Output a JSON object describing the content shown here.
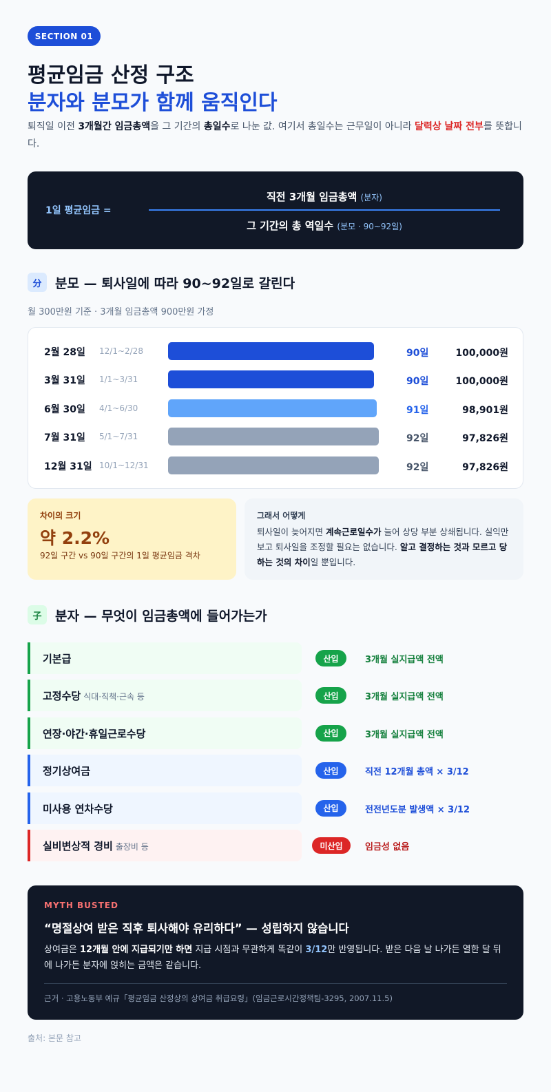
{
  "section_label": "SECTION 01",
  "title_line1": "평균임금 산정 구조",
  "title_line2": "분자와 분모가 함께 움직인다",
  "intro": {
    "p1": "퇴직일 이전 ",
    "b1": "3개월간 임금총액",
    "p2": "을 그 기간의 ",
    "b2": "총일수",
    "p3": "로 나눈 값. 여기서 총일수는 근무일이 아니라 ",
    "r1": "달력상 날짜 전부",
    "p4": "를 뜻합니다."
  },
  "formula": {
    "lhs": "1일 평균임금 =",
    "numerator_prefix": "직전 ",
    "numerator_main": "3개월 임금총액",
    "numerator_note": "(분자)",
    "denominator_main": "그 기간의 총 역일수",
    "denominator_note": "(분모 · 90~92일)"
  },
  "denominator_section": {
    "icon_char": "分",
    "heading": "분모 — 퇴사일에 따라 90~92일로 갈린다",
    "note": "월 300만원 기준 · 3개월 임금총액 900만원 가정",
    "rows": [
      {
        "date": "2월 28일",
        "range": "12/1~2/28",
        "days_value": 90,
        "days": "90일",
        "amount": "100,000원",
        "color": "#1d4ed8",
        "days_color": "#1d4ed8"
      },
      {
        "date": "3월 31일",
        "range": "1/1~3/31",
        "days_value": 90,
        "days": "90일",
        "amount": "100,000원",
        "color": "#1d4ed8",
        "days_color": "#1d4ed8"
      },
      {
        "date": "6월 30일",
        "range": "4/1~6/30",
        "days_value": 91,
        "days": "91일",
        "amount": "98,901원",
        "color": "#60a5fa",
        "days_color": "#2563eb"
      },
      {
        "date": "7월 31일",
        "range": "5/1~7/31",
        "days_value": 92,
        "days": "92일",
        "amount": "97,826원",
        "color": "#94a3b8",
        "days_color": "#475569"
      },
      {
        "date": "12월 31일",
        "range": "10/1~12/31",
        "days_value": 92,
        "days": "92일",
        "amount": "97,826원",
        "color": "#94a3b8",
        "days_color": "#475569"
      }
    ]
  },
  "diff_card": {
    "label": "차이의 크기",
    "value": "약 2.2%",
    "desc": "92일 구간 vs 90일 구간의 1일 평균임금 격차"
  },
  "so_card": {
    "label": "그래서 어떻게",
    "p1": "퇴사일이 늦어지면 ",
    "b1": "계속근로일수가",
    "p2": " 늘어 상당 부분 상쇄됩니다. 실익만 보고 퇴사일을 조정할 필요는 없습니다. ",
    "b2": "알고 결정하는 것과 모르고 당하는 것의 차이",
    "p3": "일 뿐입니다."
  },
  "numerator_section": {
    "icon_char": "子",
    "heading": "분자 — 무엇이 임금총액에 들어가는가",
    "rows": [
      {
        "name": "기본급",
        "note": "",
        "pill": "산입",
        "rule": "3개월 실지급액 전액",
        "tone": "green"
      },
      {
        "name": "고정수당",
        "note": "식대·직책·근속 등",
        "pill": "산입",
        "rule": "3개월 실지급액 전액",
        "tone": "green"
      },
      {
        "name": "연장·야간·휴일근로수당",
        "note": "",
        "pill": "산입",
        "rule": "3개월 실지급액 전액",
        "tone": "green"
      },
      {
        "name": "정기상여금",
        "note": "",
        "pill": "산입",
        "rule": "직전 12개월 총액 × 3/12",
        "tone": "blue"
      },
      {
        "name": "미사용 연차수당",
        "note": "",
        "pill": "산입",
        "rule": "전전년도분 발생액 × 3/12",
        "tone": "blue"
      },
      {
        "name": "실비변상적 경비",
        "note": "출장비 등",
        "pill": "미산입",
        "rule": "임금성 없음",
        "tone": "red"
      }
    ]
  },
  "myth": {
    "label": "MYTH BUSTED",
    "headline": "“명절상여 받은 직후 퇴사해야 유리하다” — 성립하지 않습니다",
    "p1": "상여금은 ",
    "b1": "12개월 안에 지급되기만 하면",
    "p2": " 지급 시점과 무관하게 똑같이 ",
    "hl": "3/12",
    "p3": "만 반영됩니다. 받은 다음 날 나가든 열한 달 뒤에 나가든 분자에 얹히는 금액은 같습니다.",
    "source": "근거 · 고용노동부 예규「평균임금 산정상의 상여금 취급요령」(임금근로시간정책팀-3295, 2007.11.5)"
  },
  "footer": "출처: 본문 참고",
  "colors": {
    "accent_blue": "#1d4ed8",
    "dark_panel": "#111827",
    "green": "#16a34a",
    "blue": "#2563eb",
    "red": "#dc2626"
  }
}
